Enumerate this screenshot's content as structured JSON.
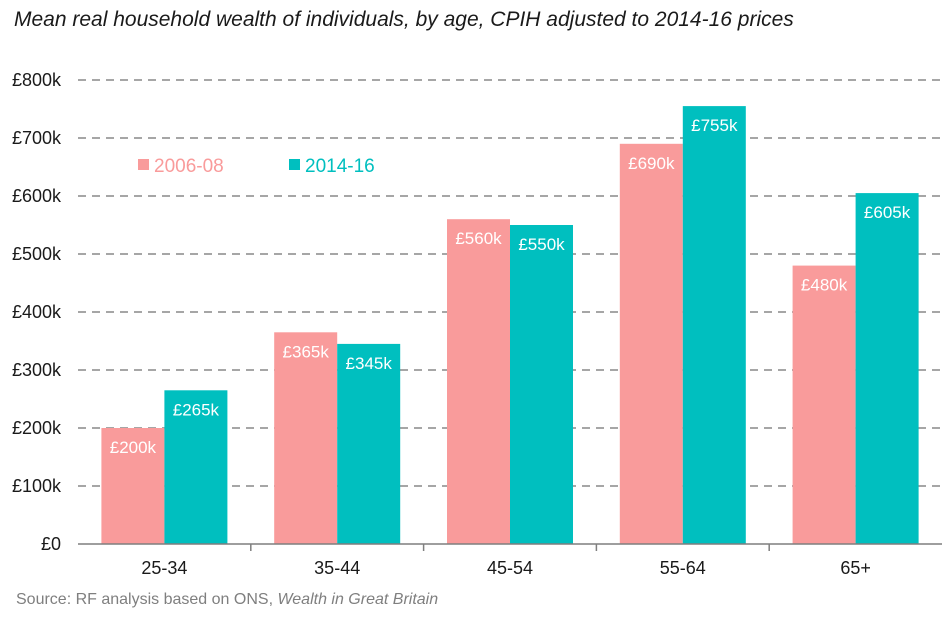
{
  "title": "Mean real household wealth of individuals, by age, CPIH adjusted to 2014-16 prices",
  "source": {
    "prefix": "Source: RF analysis based on ONS, ",
    "italic": "Wealth in Great Britain"
  },
  "colors": {
    "s1": "#f99b9b",
    "s2": "#00bfbf",
    "grid": "#a6a6a6",
    "axis": "#7f7f7f"
  },
  "chart_data": {
    "type": "bar",
    "categories": [
      "25-34",
      "35-44",
      "45-54",
      "55-64",
      "65+"
    ],
    "series": [
      {
        "name": "2006-08",
        "values": [
          200,
          365,
          560,
          690,
          480
        ],
        "labels": [
          "£200k",
          "£365k",
          "£560k",
          "£690k",
          "£480k"
        ]
      },
      {
        "name": "2014-16",
        "values": [
          265,
          345,
          550,
          755,
          605
        ],
        "labels": [
          "£265k",
          "£345k",
          "£550k",
          "£755k",
          "£605k"
        ]
      }
    ],
    "yticks": [
      0,
      100,
      200,
      300,
      400,
      500,
      600,
      700,
      800
    ],
    "ytick_labels": [
      "£0",
      "£100k",
      "£200k",
      "£300k",
      "£400k",
      "£500k",
      "£600k",
      "£700k",
      "£800k"
    ],
    "ylim": [
      0,
      800
    ],
    "grid": true,
    "legend_position": "top-left"
  }
}
